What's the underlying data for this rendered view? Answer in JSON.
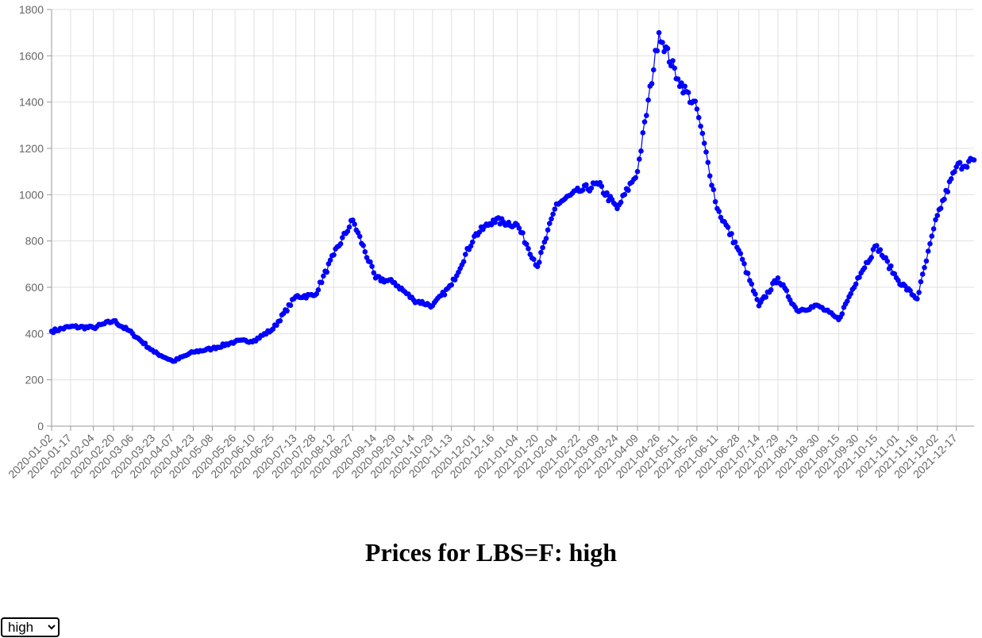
{
  "page": {
    "title": "Prices for LBS=F: high",
    "select_value": "high",
    "select_options": [
      "high"
    ]
  },
  "chart_data": {
    "type": "line",
    "title": "",
    "xlabel": "",
    "ylabel": "",
    "ylim": [
      0,
      1800
    ],
    "yticks": [
      0,
      200,
      400,
      600,
      800,
      1000,
      1200,
      1400,
      1600,
      1800
    ],
    "grid": true,
    "legend": "none",
    "x_start": "2020-01-02",
    "x_end": "2021-12-31",
    "xticks": [
      "2020-01-02",
      "2020-01-17",
      "2020-02-04",
      "2020-02-20",
      "2020-03-06",
      "2020-03-23",
      "2020-04-07",
      "2020-04-23",
      "2020-05-08",
      "2020-05-26",
      "2020-06-10",
      "2020-06-25",
      "2020-07-13",
      "2020-07-28",
      "2020-08-12",
      "2020-08-27",
      "2020-09-14",
      "2020-09-29",
      "2020-10-14",
      "2020-10-29",
      "2020-11-13",
      "2020-12-01",
      "2020-12-16",
      "2021-01-04",
      "2021-01-20",
      "2021-02-04",
      "2021-02-22",
      "2021-03-09",
      "2021-03-24",
      "2021-04-09",
      "2021-04-26",
      "2021-05-11",
      "2021-05-26",
      "2021-06-11",
      "2021-06-28",
      "2021-07-14",
      "2021-07-29",
      "2021-08-13",
      "2021-08-30",
      "2021-09-15",
      "2021-09-30",
      "2021-10-15",
      "2021-11-01",
      "2021-11-16",
      "2021-12-02",
      "2021-12-17"
    ],
    "color": "#0000ff",
    "series": [
      {
        "x": [
          "2020-01-02",
          "2020-01-17",
          "2020-02-04",
          "2020-02-20",
          "2020-03-06",
          "2020-03-23",
          "2020-04-07",
          "2020-04-23",
          "2020-05-08",
          "2020-05-26",
          "2020-06-10",
          "2020-06-25",
          "2020-07-13",
          "2020-07-28",
          "2020-08-12",
          "2020-08-27",
          "2020-09-14",
          "2020-09-29",
          "2020-10-14",
          "2020-10-29",
          "2020-11-13",
          "2020-12-01",
          "2020-12-16",
          "2021-01-04",
          "2021-01-20",
          "2021-02-04",
          "2021-02-22",
          "2021-03-09",
          "2021-03-24",
          "2021-04-09",
          "2021-04-26",
          "2021-05-11",
          "2021-05-26",
          "2021-06-11",
          "2021-06-28",
          "2021-07-14",
          "2021-07-29",
          "2021-08-13",
          "2021-08-30",
          "2021-09-15",
          "2021-09-30",
          "2021-10-15",
          "2021-11-01",
          "2021-11-16",
          "2021-12-02",
          "2021-12-17",
          "2021-12-31"
        ],
        "values": [
          410,
          430,
          425,
          455,
          400,
          320,
          280,
          320,
          335,
          365,
          370,
          420,
          560,
          565,
          740,
          890,
          640,
          620,
          545,
          520,
          610,
          820,
          890,
          870,
          690,
          960,
          1015,
          1045,
          940,
          1100,
          1700,
          1500,
          1370,
          940,
          760,
          520,
          640,
          500,
          520,
          460,
          640,
          780,
          630,
          550,
          910,
          1120,
          1150
        ]
      }
    ]
  }
}
